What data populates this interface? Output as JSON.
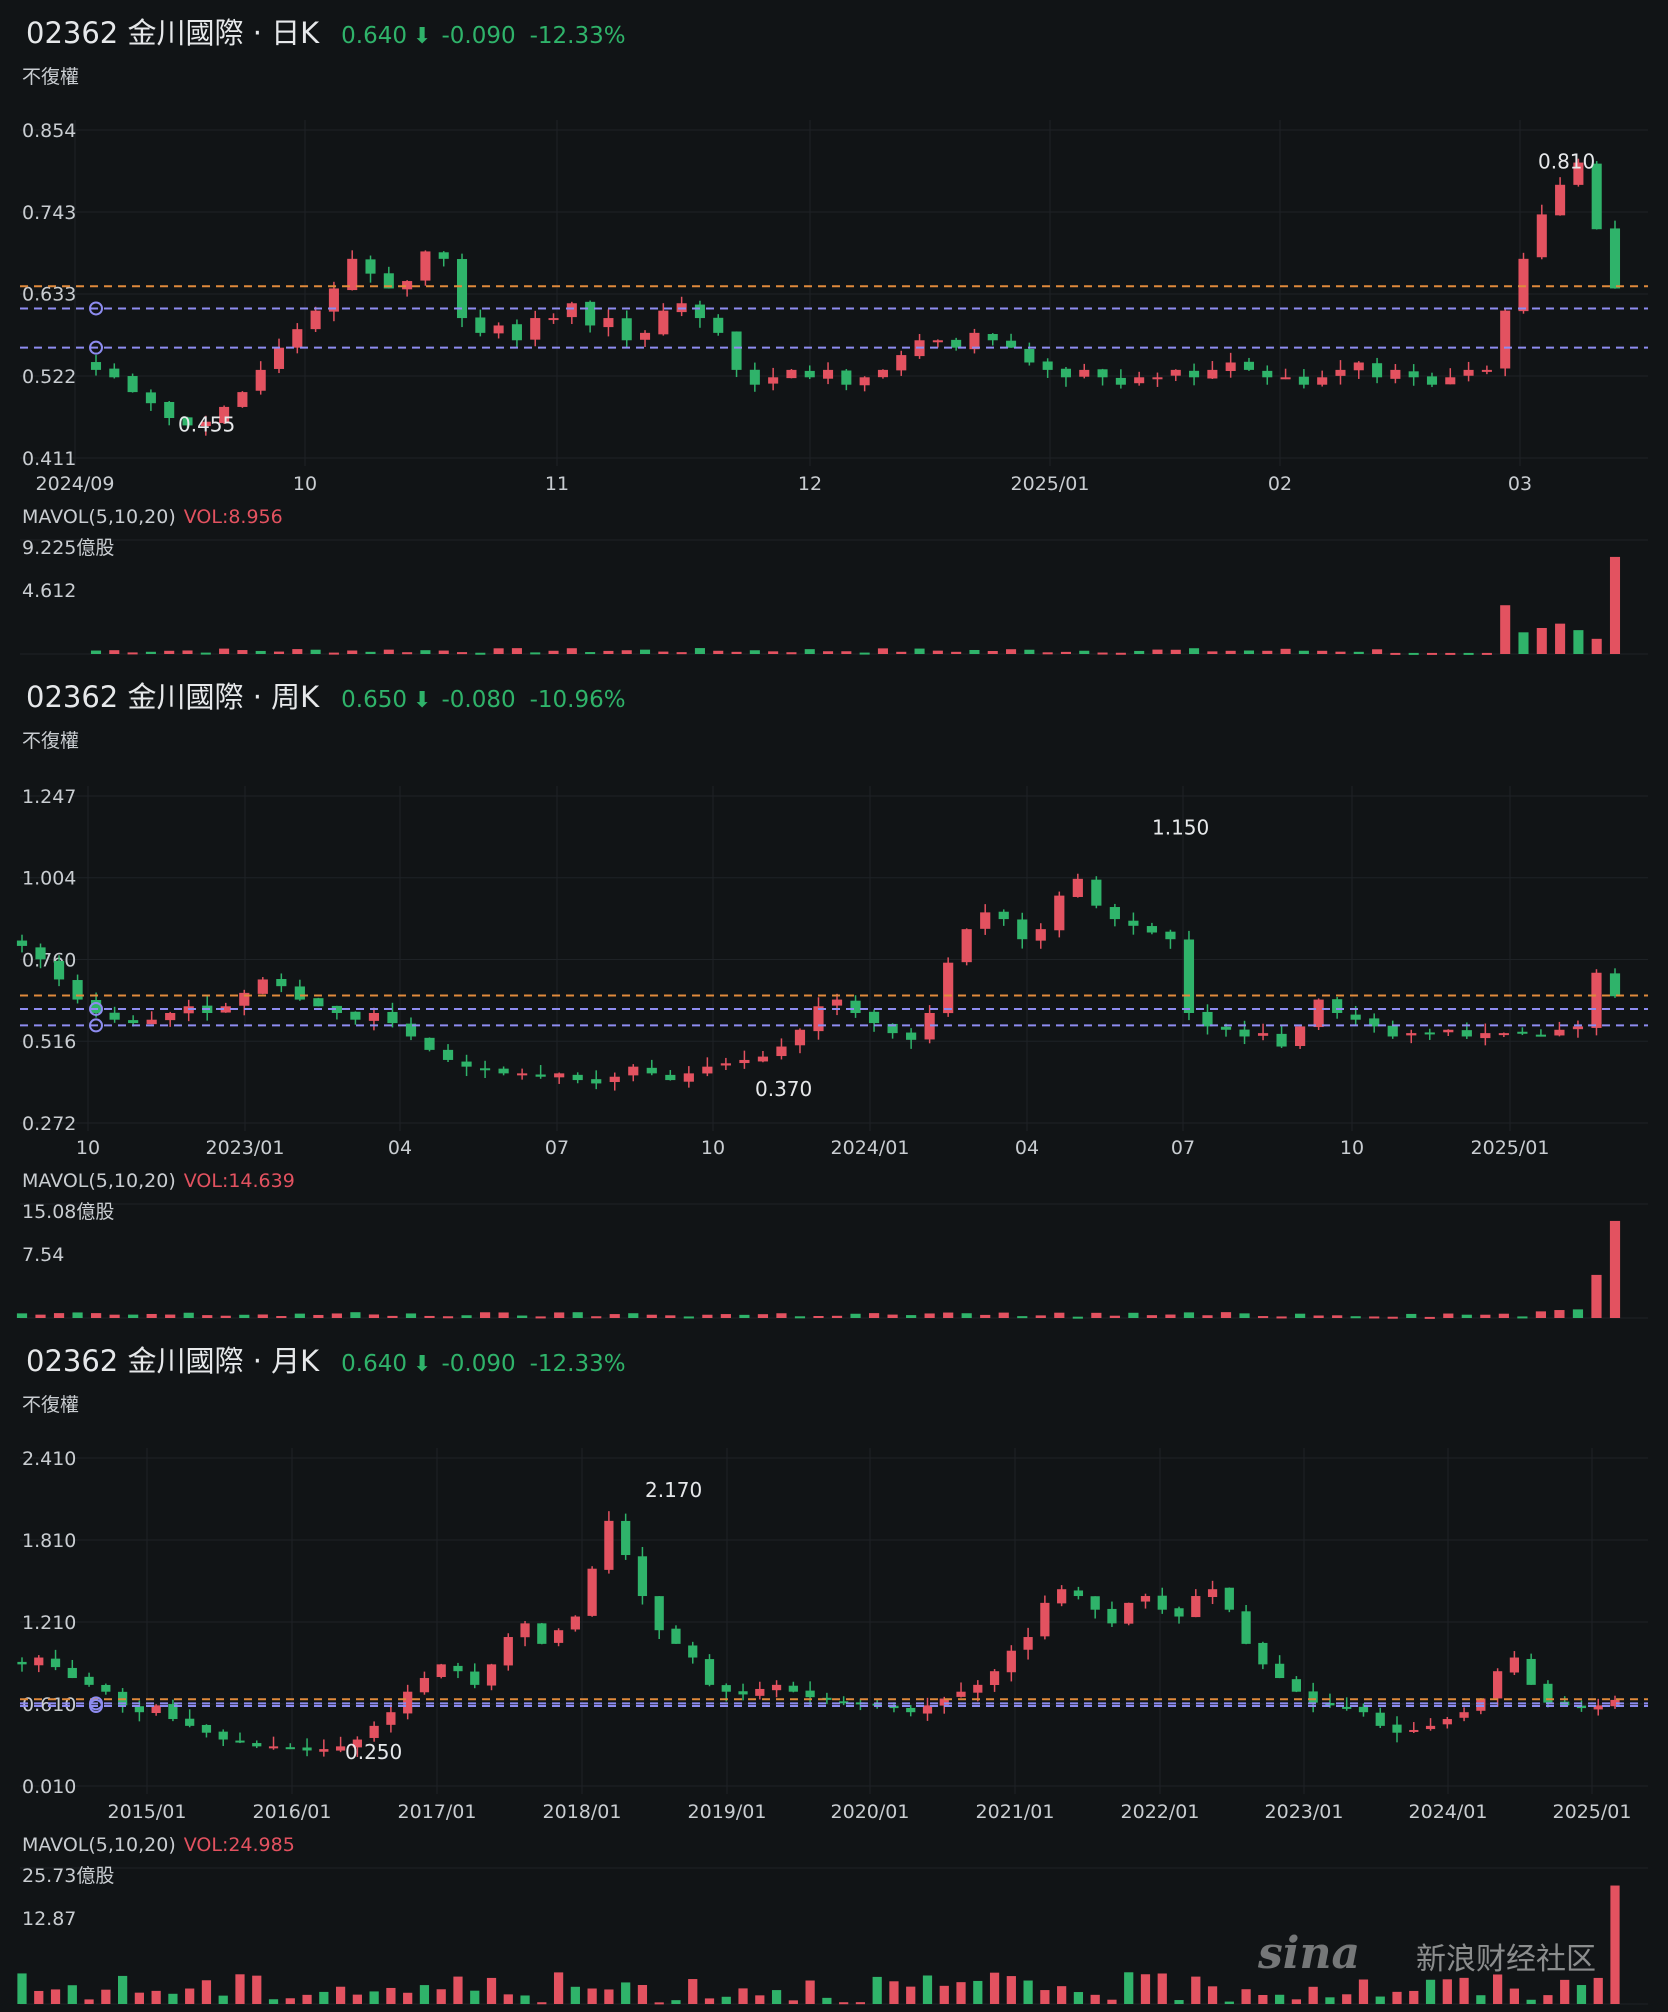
{
  "panels": [
    {
      "id": "daily",
      "title": "02362 金川國際 · 日K",
      "price": "0.640",
      "arrow": "⬇",
      "change": "-0.090",
      "change_pct": "-12.33%",
      "adjust_label": "不復權",
      "volume_label": "MAVOL(5,10,20)",
      "volume_value": "VOL:8.956",
      "volume_axis": [
        "9.225億股",
        "4.612"
      ]
    },
    {
      "id": "weekly",
      "title": "02362 金川國際 · 周K",
      "price": "0.650",
      "arrow": "⬇",
      "change": "-0.080",
      "change_pct": "-10.96%",
      "adjust_label": "不復權",
      "volume_label": "MAVOL(5,10,20)",
      "volume_value": "VOL:14.639",
      "volume_axis": [
        "15.08億股",
        "7.54"
      ]
    },
    {
      "id": "monthly",
      "title": "02362 金川國際 · 月K",
      "price": "0.640",
      "arrow": "⬇",
      "change": "-0.090",
      "change_pct": "-12.33%",
      "adjust_label": "不復權",
      "volume_label": "MAVOL(5,10,20)",
      "volume_value": "VOL:24.985",
      "volume_axis": [
        "25.73億股",
        "12.87"
      ]
    }
  ],
  "watermark": {
    "logo": "sina",
    "text": "新浪财经社区"
  },
  "colors": {
    "up": "#e35260",
    "down": "#2fb36a",
    "orange_line": "#e08a3c",
    "blue_line": "#8e8cf0",
    "grid": "#1e2226",
    "background": "#111416"
  },
  "chart_data": [
    {
      "type": "candlestick",
      "title": "02362 金川國際 · 日K",
      "ylim": [
        0.411,
        0.854
      ],
      "y_ticks": [
        "0.854",
        "0.743",
        "0.633",
        "0.522",
        "0.411"
      ],
      "x_ticks": [
        "2024/09",
        "10",
        "11",
        "12",
        "2025/01",
        "02",
        "03"
      ],
      "annotations": [
        {
          "label": "0.810",
          "value": 0.81
        },
        {
          "label": "0.455",
          "value": 0.455
        }
      ],
      "reference_lines": {
        "orange": 0.643,
        "blue": [
          0.613,
          0.56
        ]
      },
      "close_path": [
        0.53,
        0.52,
        0.5,
        0.485,
        0.465,
        0.455,
        0.46,
        0.48,
        0.5,
        0.53,
        0.56,
        0.585,
        0.61,
        0.64,
        0.68,
        0.66,
        0.64,
        0.65,
        0.69,
        0.68,
        0.6,
        0.58,
        0.59,
        0.57,
        0.6,
        0.6,
        0.62,
        0.59,
        0.6,
        0.57,
        0.58,
        0.61,
        0.62,
        0.6,
        0.58,
        0.53,
        0.51,
        0.52,
        0.53,
        0.52,
        0.53,
        0.51,
        0.52,
        0.53,
        0.55,
        0.57,
        0.57,
        0.56,
        0.58,
        0.57,
        0.56,
        0.54,
        0.53,
        0.52,
        0.53,
        0.52,
        0.51,
        0.52,
        0.52,
        0.53,
        0.52,
        0.53,
        0.54,
        0.53,
        0.52,
        0.52,
        0.51,
        0.52,
        0.53,
        0.54,
        0.52,
        0.53,
        0.52,
        0.51,
        0.52,
        0.53,
        0.53,
        0.61,
        0.68,
        0.74,
        0.78,
        0.81,
        0.72,
        0.64
      ],
      "volume_ylim": [
        0,
        9.225
      ],
      "volume_tail": [
        0.1,
        0.1,
        0.1,
        0.1,
        0.1,
        0.1,
        4.5,
        2.0,
        2.4,
        2.8,
        2.2,
        1.4,
        8.956
      ]
    },
    {
      "type": "candlestick",
      "title": "02362 金川國際 · 周K",
      "ylim": [
        0.272,
        1.247
      ],
      "y_ticks": [
        "1.247",
        "1.004",
        "0.760",
        "0.516",
        "0.272"
      ],
      "x_ticks": [
        "10",
        "2023/01",
        "04",
        "07",
        "10",
        "2024/01",
        "04",
        "07",
        "10",
        "2025/01"
      ],
      "annotations": [
        {
          "label": "1.150",
          "value": 1.15
        },
        {
          "label": "0.370",
          "value": 0.37
        }
      ],
      "reference_lines": {
        "orange": 0.652,
        "blue": [
          0.612,
          0.563
        ]
      },
      "close_path": [
        0.8,
        0.76,
        0.7,
        0.64,
        0.6,
        0.58,
        0.57,
        0.58,
        0.6,
        0.62,
        0.6,
        0.62,
        0.66,
        0.7,
        0.68,
        0.64,
        0.62,
        0.6,
        0.58,
        0.6,
        0.57,
        0.53,
        0.49,
        0.46,
        0.44,
        0.43,
        0.42,
        0.42,
        0.41,
        0.42,
        0.4,
        0.39,
        0.41,
        0.44,
        0.42,
        0.4,
        0.42,
        0.44,
        0.45,
        0.46,
        0.47,
        0.5,
        0.55,
        0.62,
        0.64,
        0.6,
        0.57,
        0.54,
        0.52,
        0.6,
        0.75,
        0.85,
        0.9,
        0.88,
        0.82,
        0.85,
        0.95,
        1.0,
        0.92,
        0.88,
        0.86,
        0.84,
        0.82,
        0.6,
        0.56,
        0.55,
        0.53,
        0.54,
        0.5,
        0.56,
        0.64,
        0.6,
        0.58,
        0.56,
        0.53,
        0.54,
        0.54,
        0.55,
        0.53,
        0.54,
        0.54,
        0.54,
        0.53,
        0.55,
        0.56,
        0.72,
        0.65
      ],
      "volume_ylim": [
        0,
        15.08
      ],
      "volume_tail": [
        1.0,
        1.2,
        1.3,
        6.5,
        14.639
      ]
    },
    {
      "type": "candlestick",
      "title": "02362 金川國際 · 月K",
      "ylim": [
        0.01,
        2.41
      ],
      "y_ticks": [
        "2.410",
        "1.810",
        "1.210",
        "0.610",
        "0.010"
      ],
      "x_ticks": [
        "2015/01",
        "2016/01",
        "2017/01",
        "2018/01",
        "2019/01",
        "2020/01",
        "2021/01",
        "2022/01",
        "2023/01",
        "2024/01",
        "2025/01"
      ],
      "annotations": [
        {
          "label": "2.170",
          "value": 2.17
        },
        {
          "label": "0.250",
          "value": 0.25
        }
      ],
      "reference_lines": {
        "orange": 0.645,
        "blue": [
          0.615,
          0.595
        ]
      },
      "close_path": [
        0.9,
        0.95,
        0.88,
        0.8,
        0.75,
        0.7,
        0.6,
        0.55,
        0.6,
        0.5,
        0.45,
        0.4,
        0.35,
        0.33,
        0.3,
        0.3,
        0.28,
        0.27,
        0.28,
        0.3,
        0.35,
        0.45,
        0.55,
        0.7,
        0.8,
        0.9,
        0.85,
        0.75,
        0.9,
        1.1,
        1.2,
        1.05,
        1.15,
        1.25,
        1.6,
        1.95,
        1.7,
        1.4,
        1.15,
        1.05,
        0.95,
        0.75,
        0.7,
        0.68,
        0.72,
        0.75,
        0.7,
        0.66,
        0.64,
        0.62,
        0.62,
        0.6,
        0.58,
        0.55,
        0.6,
        0.65,
        0.7,
        0.75,
        0.85,
        1.0,
        1.1,
        1.35,
        1.45,
        1.4,
        1.3,
        1.2,
        1.35,
        1.4,
        1.3,
        1.25,
        1.4,
        1.45,
        1.3,
        1.05,
        0.9,
        0.8,
        0.7,
        0.62,
        0.6,
        0.58,
        0.55,
        0.45,
        0.4,
        0.42,
        0.45,
        0.5,
        0.55,
        0.65,
        0.85,
        0.95,
        0.75,
        0.62,
        0.6,
        0.58,
        0.6,
        0.64
      ],
      "volume_ylim": [
        0,
        25.73
      ],
      "volume_tail": [
        4.0,
        5.5,
        24.985
      ]
    }
  ]
}
